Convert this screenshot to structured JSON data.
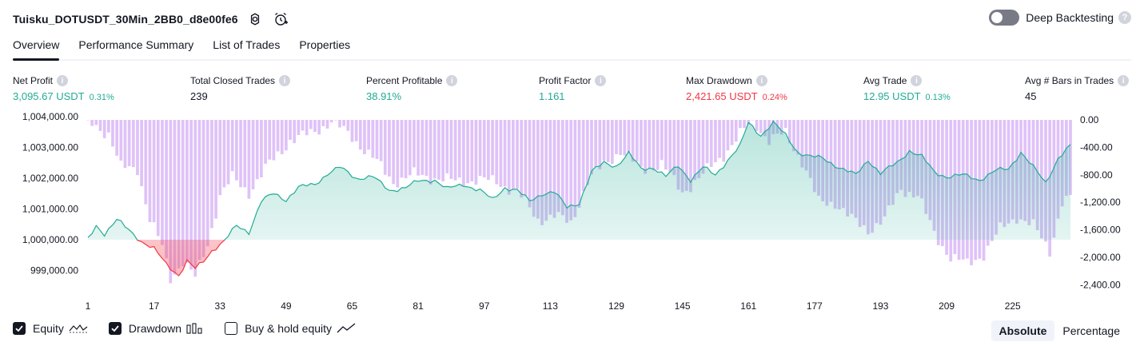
{
  "strategy_title": "Tuisku_DOTUSDT_30Min_2BB0_d8e00fe6",
  "deep_backtesting": {
    "label": "Deep Backtesting",
    "enabled": false
  },
  "tabs": [
    "Overview",
    "Performance Summary",
    "List of Trades",
    "Properties"
  ],
  "active_tab": "Overview",
  "metrics": {
    "net_profit": {
      "label": "Net Profit",
      "value": "3,095.67 USDT",
      "pct": "0.31%"
    },
    "total_closed_trades": {
      "label": "Total Closed Trades",
      "value": "239"
    },
    "percent_profitable": {
      "label": "Percent Profitable",
      "value": "38.91%"
    },
    "profit_factor": {
      "label": "Profit Factor",
      "value": "1.161"
    },
    "max_drawdown": {
      "label": "Max Drawdown",
      "value": "2,421.65 USDT",
      "pct": "0.24%"
    },
    "avg_trade": {
      "label": "Avg Trade",
      "value": "12.95 USDT",
      "pct": "0.13%"
    },
    "avg_bars": {
      "label": "Avg # Bars in Trades",
      "value": "45"
    }
  },
  "legend": {
    "equity": "Equity",
    "drawdown": "Drawdown",
    "buy_hold": "Buy & hold equity"
  },
  "modes": {
    "absolute": "Absolute",
    "percentage": "Percentage"
  },
  "colors": {
    "equity_up": "#22ab94",
    "equity_down": "#f23645",
    "drawdown": "#c99af3",
    "text": "#131722"
  },
  "chart_data": {
    "type": "area",
    "equity_baseline": 1000000,
    "y_left": {
      "ticks": [
        1004000,
        1003000,
        1002000,
        1001000,
        1000000,
        999000
      ],
      "tick_labels": [
        "1,004,000.00",
        "1,003,000.00",
        "1,002,000.00",
        "1,001,000.00",
        "1,000,000.00",
        "999,000.00"
      ]
    },
    "y_right": {
      "ticks": [
        0,
        -400,
        -800,
        -1200,
        -1600,
        -2000,
        -2400
      ],
      "tick_labels": [
        "0.00",
        "-400.00",
        "-800.00",
        "-1,200.00",
        "-1,600.00",
        "-2,000.00",
        "-2,400.00"
      ]
    },
    "x_ticks": [
      1,
      17,
      33,
      49,
      65,
      81,
      97,
      113,
      129,
      145,
      161,
      177,
      193,
      209,
      225
    ],
    "x_range": [
      1,
      239
    ],
    "equity_keypoints": [
      [
        1,
        1000000
      ],
      [
        3,
        1000450
      ],
      [
        5,
        1000200
      ],
      [
        8,
        1000650
      ],
      [
        11,
        1000300
      ],
      [
        14,
        999950
      ],
      [
        17,
        999700
      ],
      [
        20,
        999200
      ],
      [
        23,
        998850
      ],
      [
        25,
        999300
      ],
      [
        27,
        999050
      ],
      [
        29,
        999300
      ],
      [
        31,
        999650
      ],
      [
        34,
        999950
      ],
      [
        37,
        1000450
      ],
      [
        40,
        1000250
      ],
      [
        43,
        1001250
      ],
      [
        46,
        1001500
      ],
      [
        49,
        1001300
      ],
      [
        52,
        1001700
      ],
      [
        56,
        1001800
      ],
      [
        59,
        1002150
      ],
      [
        62,
        1002350
      ],
      [
        66,
        1002000
      ],
      [
        70,
        1002050
      ],
      [
        74,
        1001600
      ],
      [
        78,
        1001700
      ],
      [
        81,
        1001900
      ],
      [
        85,
        1001950
      ],
      [
        88,
        1001650
      ],
      [
        92,
        1001800
      ],
      [
        96,
        1001600
      ],
      [
        99,
        1001300
      ],
      [
        102,
        1001700
      ],
      [
        105,
        1001600
      ],
      [
        108,
        1001250
      ],
      [
        111,
        1001500
      ],
      [
        114,
        1001550
      ],
      [
        117,
        1001050
      ],
      [
        120,
        1001200
      ],
      [
        123,
        1002200
      ],
      [
        126,
        1002500
      ],
      [
        129,
        1002400
      ],
      [
        132,
        1002800
      ],
      [
        135,
        1002300
      ],
      [
        138,
        1002350
      ],
      [
        141,
        1002050
      ],
      [
        144,
        1002400
      ],
      [
        147,
        1001950
      ],
      [
        150,
        1002350
      ],
      [
        153,
        1002100
      ],
      [
        156,
        1002600
      ],
      [
        159,
        1003050
      ],
      [
        161,
        1003800
      ],
      [
        164,
        1003400
      ],
      [
        167,
        1003800
      ],
      [
        170,
        1003400
      ],
      [
        173,
        1002850
      ],
      [
        176,
        1002700
      ],
      [
        179,
        1002650
      ],
      [
        183,
        1002350
      ],
      [
        187,
        1002100
      ],
      [
        190,
        1002600
      ],
      [
        193,
        1002150
      ],
      [
        197,
        1002500
      ],
      [
        200,
        1002900
      ],
      [
        203,
        1002700
      ],
      [
        206,
        1002200
      ],
      [
        209,
        1002050
      ],
      [
        213,
        1002100
      ],
      [
        217,
        1001950
      ],
      [
        221,
        1002250
      ],
      [
        224,
        1002300
      ],
      [
        227,
        1002850
      ],
      [
        230,
        1002350
      ],
      [
        233,
        1001850
      ],
      [
        236,
        1002650
      ],
      [
        239,
        1003050
      ]
    ],
    "drawdown_keypoints": [
      [
        1,
        -20
      ],
      [
        6,
        -200
      ],
      [
        9,
        -700
      ],
      [
        13,
        -700
      ],
      [
        16,
        -1450
      ],
      [
        19,
        -1850
      ],
      [
        21,
        -2300
      ],
      [
        24,
        -2050
      ],
      [
        27,
        -2300
      ],
      [
        30,
        -1800
      ],
      [
        33,
        -1100
      ],
      [
        36,
        -850
      ],
      [
        40,
        -1050
      ],
      [
        45,
        -640
      ],
      [
        50,
        -300
      ],
      [
        55,
        -200
      ],
      [
        60,
        -20
      ],
      [
        65,
        -250
      ],
      [
        70,
        -550
      ],
      [
        75,
        -900
      ],
      [
        80,
        -800
      ],
      [
        85,
        -840
      ],
      [
        90,
        -900
      ],
      [
        95,
        -870
      ],
      [
        100,
        -900
      ],
      [
        105,
        -1050
      ],
      [
        110,
        -1450
      ],
      [
        114,
        -1400
      ],
      [
        118,
        -1500
      ],
      [
        122,
        -900
      ],
      [
        126,
        -650
      ],
      [
        130,
        -450
      ],
      [
        135,
        -720
      ],
      [
        140,
        -650
      ],
      [
        145,
        -1050
      ],
      [
        150,
        -800
      ],
      [
        155,
        -500
      ],
      [
        160,
        -150
      ],
      [
        162,
        0
      ],
      [
        166,
        -300
      ],
      [
        170,
        -200
      ],
      [
        174,
        -600
      ],
      [
        178,
        -1200
      ],
      [
        182,
        -1200
      ],
      [
        186,
        -1450
      ],
      [
        190,
        -1600
      ],
      [
        194,
        -1450
      ],
      [
        198,
        -1000
      ],
      [
        202,
        -1100
      ],
      [
        206,
        -1650
      ],
      [
        210,
        -2000
      ],
      [
        214,
        -2100
      ],
      [
        218,
        -1950
      ],
      [
        222,
        -1600
      ],
      [
        226,
        -1400
      ],
      [
        230,
        -1550
      ],
      [
        234,
        -1900
      ],
      [
        237,
        -1200
      ],
      [
        239,
        -1150
      ]
    ]
  }
}
